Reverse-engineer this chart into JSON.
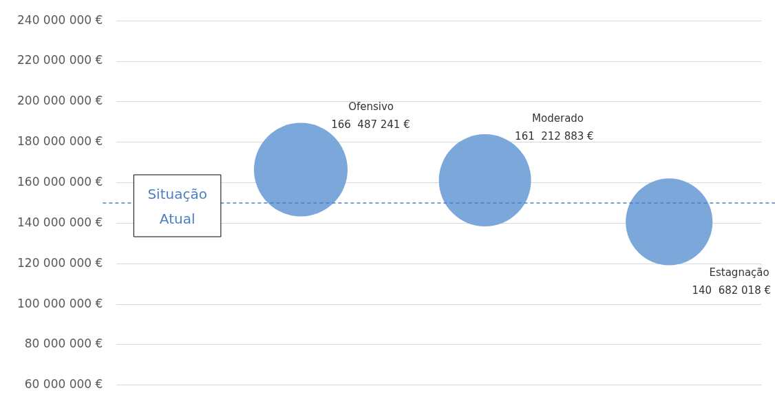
{
  "chart_data": {
    "type": "bubble",
    "categories": [
      null,
      null,
      null
    ],
    "series": [
      {
        "name": "Ofensivo",
        "color": "#7ba7db",
        "values": [
          166487241,
          null,
          null
        ],
        "sizes": [
          1,
          null,
          null
        ],
        "value_labels": [
          "166  487 241 €",
          null,
          null
        ]
      },
      {
        "name": "Moderado",
        "color": "#7ba7db",
        "values": [
          null,
          161212883,
          null
        ],
        "sizes": [
          null,
          0.97,
          null
        ],
        "value_labels": [
          null,
          "161  212 883 €",
          null
        ]
      },
      {
        "name": "Estagnação",
        "color": "#7ba7db",
        "values": [
          null,
          null,
          140682018
        ],
        "sizes": [
          null,
          null,
          0.86
        ],
        "value_labels": [
          null,
          null,
          "140  682 018 €"
        ]
      }
    ],
    "ylim": [
      60000000,
      240000000
    ],
    "yticks": [
      {
        "value": 60000000,
        "label": "60 000 000 €"
      },
      {
        "value": 80000000,
        "label": "80 000 000 €"
      },
      {
        "value": 100000000,
        "label": "100 000 000 €"
      },
      {
        "value": 120000000,
        "label": "120 000 000 €"
      },
      {
        "value": 140000000,
        "label": "140 000 000 €"
      },
      {
        "value": 160000000,
        "label": "160 000 000 €"
      },
      {
        "value": 180000000,
        "label": "180 000 000 €"
      },
      {
        "value": 200000000,
        "label": "200 000 000 €"
      },
      {
        "value": 220000000,
        "label": "220 000 000 €"
      },
      {
        "value": 240000000,
        "label": "240 000 000 €"
      }
    ],
    "ref_lines": [
      {
        "axis": "y",
        "value": 150000000,
        "label": "Situação Atual",
        "color": "#4a7fc4",
        "line_style": "dashed"
      }
    ],
    "grid": "y",
    "legend": false,
    "tick_labels": "y"
  }
}
